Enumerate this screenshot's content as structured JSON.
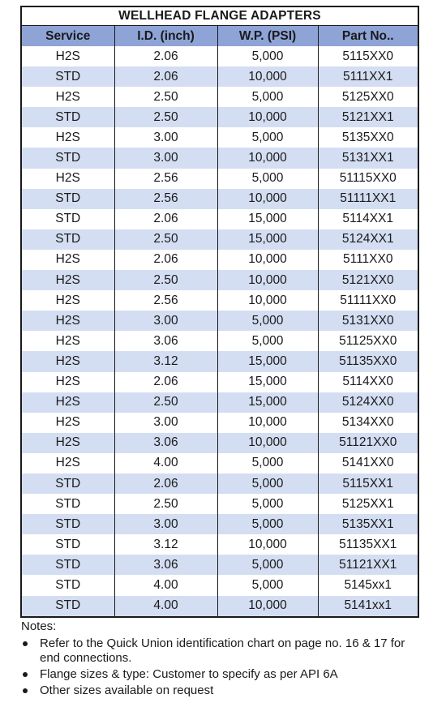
{
  "table": {
    "title": "WELLHEAD FLANGE ADAPTERS",
    "headers": [
      "Service",
      "I.D. (inch)",
      "W.P. (PSI)",
      "Part No.."
    ],
    "rows": [
      [
        "H2S",
        "2.06",
        "5,000",
        "5115XX0"
      ],
      [
        "STD",
        "2.06",
        "10,000",
        "5111XX1"
      ],
      [
        "H2S",
        "2.50",
        "5,000",
        "5125XX0"
      ],
      [
        "STD",
        "2.50",
        "10,000",
        "5121XX1"
      ],
      [
        "H2S",
        "3.00",
        "5,000",
        "5135XX0"
      ],
      [
        "STD",
        "3.00",
        "10,000",
        "5131XX1"
      ],
      [
        "H2S",
        "2.56",
        "5,000",
        "51115XX0"
      ],
      [
        "STD",
        "2.56",
        "10,000",
        "51111XX1"
      ],
      [
        "STD",
        "2.06",
        "15,000",
        "5114XX1"
      ],
      [
        "STD",
        "2.50",
        "15,000",
        "5124XX1"
      ],
      [
        "H2S",
        "2.06",
        "10,000",
        "5111XX0"
      ],
      [
        "H2S",
        "2.50",
        "10,000",
        "5121XX0"
      ],
      [
        "H2S",
        "2.56",
        "10,000",
        "51111XX0"
      ],
      [
        "H2S",
        "3.00",
        "5,000",
        "5131XX0"
      ],
      [
        "H2S",
        "3.06",
        "5,000",
        "51125XX0"
      ],
      [
        "H2S",
        "3.12",
        "15,000",
        "51135XX0"
      ],
      [
        "H2S",
        "2.06",
        "15,000",
        "5114XX0"
      ],
      [
        "H2S",
        "2.50",
        "15,000",
        "5124XX0"
      ],
      [
        "H2S",
        "3.00",
        "10,000",
        "5134XX0"
      ],
      [
        "H2S",
        "3.06",
        "10,000",
        "51121XX0"
      ],
      [
        "H2S",
        "4.00",
        "5,000",
        "5141XX0"
      ],
      [
        "STD",
        "2.06",
        "5,000",
        "5115XX1"
      ],
      [
        "STD",
        "2.50",
        "5,000",
        "5125XX1"
      ],
      [
        "STD",
        "3.00",
        "5,000",
        "5135XX1"
      ],
      [
        "STD",
        "3.12",
        "10,000",
        "51135XX1"
      ],
      [
        "STD",
        "3.06",
        "5,000",
        "51121XX1"
      ],
      [
        "STD",
        "4.00",
        "5,000",
        "5145xx1"
      ],
      [
        "STD",
        "4.00",
        "10,000",
        "5141xx1"
      ]
    ]
  },
  "notes": {
    "heading": "Notes:",
    "items": [
      "Refer to the Quick Union identification chart on page no. 16 & 17 for end connections.",
      "Flange sizes & type: Customer to specify as per API 6A",
      "Other sizes available on request"
    ]
  },
  "colors": {
    "header_fill": "#8ea3d6",
    "stripe_fill": "#d4def2",
    "border": "#1a1a1a"
  }
}
